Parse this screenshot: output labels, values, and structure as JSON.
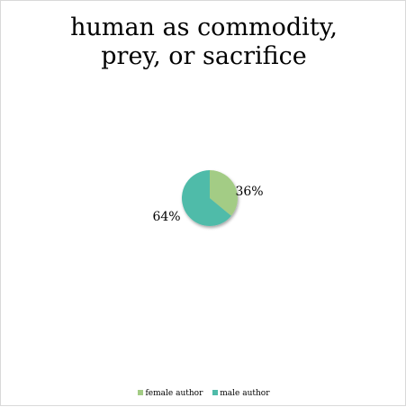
{
  "chart_data": {
    "type": "pie",
    "title_lines": [
      "human as commodity,",
      "prey, or sacrifice"
    ],
    "slices": [
      {
        "label": "female author",
        "value": 36,
        "data_label": "36%",
        "color": "#a3cc85"
      },
      {
        "label": "male author",
        "value": 64,
        "data_label": "64%",
        "color": "#4fbba9"
      }
    ],
    "legend_placement": "bottom",
    "grid": false
  }
}
